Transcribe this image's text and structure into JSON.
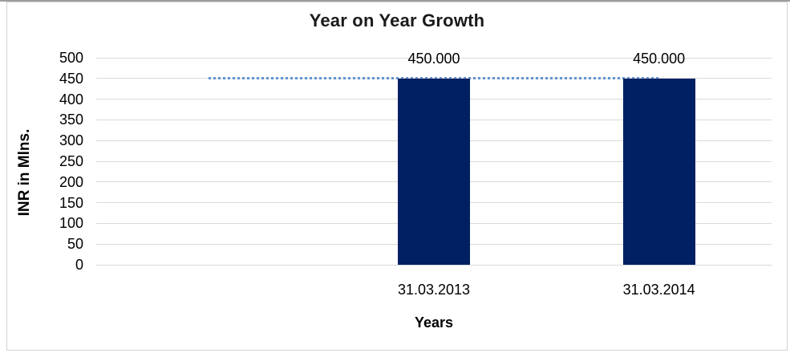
{
  "chart_data": {
    "type": "bar",
    "title": "Year on Year Growth",
    "xlabel": "Years",
    "ylabel": "INR in Mlns.",
    "categories": [
      "",
      "31.03.2013",
      "31.03.2014"
    ],
    "series": [
      {
        "name": "yearly-value-bars",
        "type": "bar",
        "color": "#002063",
        "values": [
          null,
          450,
          450
        ],
        "data_labels": [
          null,
          "450.000",
          "450.000"
        ]
      },
      {
        "name": "level-line",
        "type": "line",
        "line_style": "dotted",
        "color": "#6295d2",
        "values": [
          450,
          450,
          450
        ]
      }
    ],
    "ylim": [
      0,
      500
    ],
    "yticks": [
      0,
      50,
      100,
      150,
      200,
      250,
      300,
      350,
      400,
      450,
      500
    ],
    "grid": true,
    "legend": "none",
    "colors": {
      "gridline": "#d9d9d9",
      "chart_border": "#d3d3d3",
      "top_rule": "#9d9d9d",
      "text": "#000000"
    }
  }
}
